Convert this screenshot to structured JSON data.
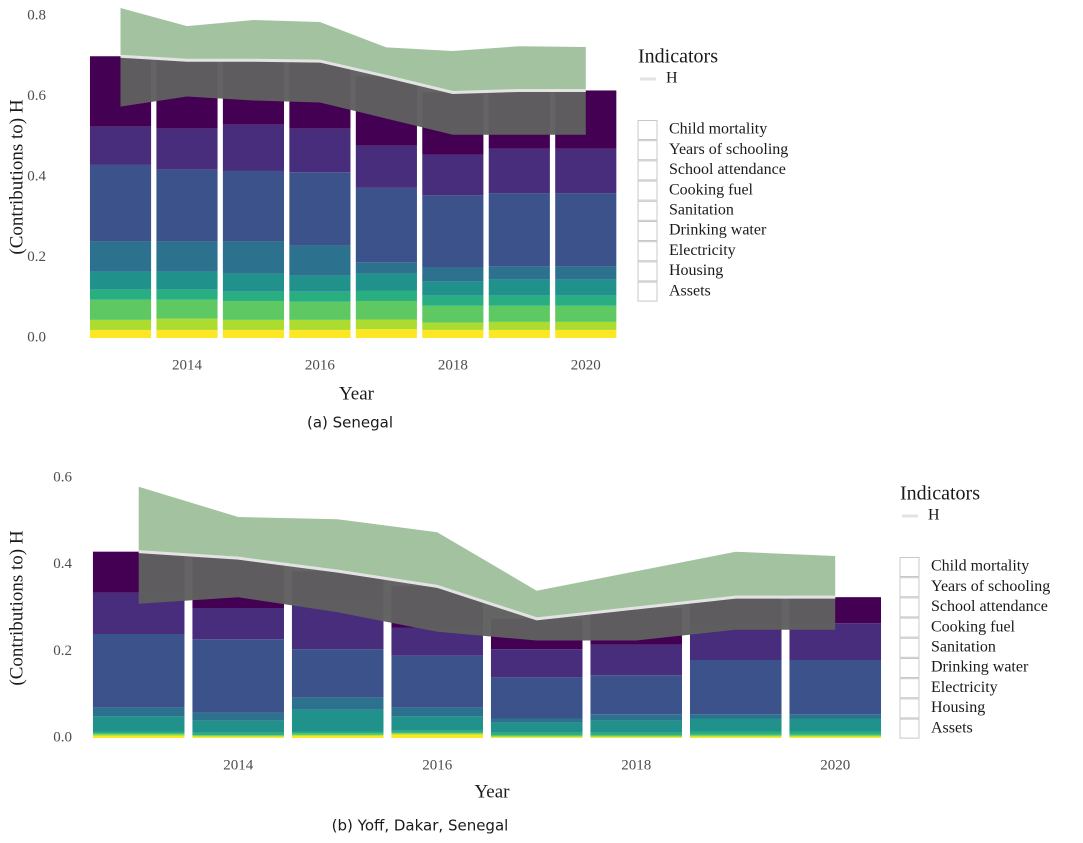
{
  "chart_data": [
    {
      "type": "bar",
      "stacked": true,
      "caption": "(a) Senegal",
      "x_label": "Year",
      "y_label": "(Contributions to) H",
      "legend_title": "Indicators",
      "x": [
        2013,
        2014,
        2015,
        2016,
        2017,
        2018,
        2019,
        2020
      ],
      "xlim": [
        2012.3,
        2020.5
      ],
      "xticks": [
        2014,
        2016,
        2018,
        2020
      ],
      "ylim": [
        0,
        0.8
      ],
      "yticks": [
        {
          "value": 0,
          "label": "0.0"
        },
        0.2,
        0.4,
        0.6,
        0.8
      ],
      "series": [
        {
          "name": "Child mortality",
          "color": "#440154",
          "values": [
            0.175,
            0.17,
            0.16,
            0.17,
            0.172,
            0.155,
            0.145,
            0.145
          ]
        },
        {
          "name": "Years of schooling",
          "color": "#472d7b",
          "values": [
            0.095,
            0.102,
            0.115,
            0.108,
            0.105,
            0.1,
            0.11,
            0.11
          ]
        },
        {
          "name": "School attendance",
          "color": "#3b528b",
          "values": [
            0.19,
            0.178,
            0.175,
            0.182,
            0.185,
            0.18,
            0.182,
            0.182
          ]
        },
        {
          "name": "Cooking fuel",
          "color": "#2c728e",
          "values": [
            0.075,
            0.075,
            0.08,
            0.075,
            0.028,
            0.035,
            0.033,
            0.033
          ]
        },
        {
          "name": "Sanitation",
          "color": "#21918c",
          "values": [
            0.045,
            0.045,
            0.045,
            0.04,
            0.042,
            0.035,
            0.04,
            0.04
          ]
        },
        {
          "name": "Drinking water",
          "color": "#28ae80",
          "values": [
            0.025,
            0.025,
            0.023,
            0.025,
            0.026,
            0.025,
            0.025,
            0.025
          ]
        },
        {
          "name": "Electricity",
          "color": "#5ec962",
          "values": [
            0.05,
            0.047,
            0.047,
            0.045,
            0.046,
            0.042,
            0.04,
            0.04
          ]
        },
        {
          "name": "Housing",
          "color": "#addc30",
          "values": [
            0.025,
            0.028,
            0.025,
            0.025,
            0.024,
            0.018,
            0.02,
            0.02
          ]
        },
        {
          "name": "Assets",
          "color": "#fde725",
          "values": [
            0.02,
            0.02,
            0.02,
            0.02,
            0.022,
            0.02,
            0.02,
            0.02
          ]
        }
      ],
      "h": {
        "name": "H",
        "color": "#e3e3e3",
        "values": [
          0.7,
          0.69,
          0.69,
          0.688,
          0.65,
          0.61,
          0.615,
          0.615
        ],
        "upper": [
          0.82,
          0.775,
          0.79,
          0.785,
          0.722,
          0.713,
          0.725,
          0.723
        ],
        "lower": [
          0.575,
          0.6,
          0.59,
          0.585,
          0.545,
          0.505,
          0.505,
          0.505
        ],
        "upper_color": "#a3c3a0",
        "lower_color": "#5f5f5f"
      }
    },
    {
      "type": "bar",
      "stacked": true,
      "caption": "(b) Yoff, Dakar, Senegal",
      "x_label": "Year",
      "y_label": "(Contributions to) H",
      "legend_title": "Indicators",
      "x": [
        2013,
        2014,
        2015,
        2016,
        2017,
        2018,
        2019,
        2020
      ],
      "xlim": [
        2012.4,
        2020.5
      ],
      "xticks": [
        2014,
        2016,
        2018,
        2020
      ],
      "ylim": [
        0,
        0.6
      ],
      "yticks": [
        {
          "value": 0,
          "label": "0.0"
        },
        0.2,
        0.4,
        0.6
      ],
      "series": [
        {
          "name": "Child mortality",
          "color": "#440154",
          "values": [
            0.095,
            0.115,
            0.07,
            0.095,
            0.07,
            0.085,
            0.065,
            0.06
          ]
        },
        {
          "name": "Years of schooling",
          "color": "#472d7b",
          "values": [
            0.095,
            0.072,
            0.11,
            0.065,
            0.065,
            0.07,
            0.08,
            0.085
          ]
        },
        {
          "name": "School attendance",
          "color": "#3b528b",
          "values": [
            0.17,
            0.17,
            0.112,
            0.12,
            0.095,
            0.09,
            0.125,
            0.125
          ]
        },
        {
          "name": "Cooking fuel",
          "color": "#2c728e",
          "values": [
            0.02,
            0.018,
            0.028,
            0.02,
            0.01,
            0.015,
            0.01,
            0.01
          ]
        },
        {
          "name": "Sanitation",
          "color": "#21918c",
          "values": [
            0.035,
            0.028,
            0.05,
            0.033,
            0.023,
            0.028,
            0.03,
            0.03
          ]
        },
        {
          "name": "Drinking water",
          "color": "#28ae80",
          "values": [
            0.005,
            0.005,
            0.005,
            0.005,
            0.005,
            0.005,
            0.007,
            0.007
          ]
        },
        {
          "name": "Electricity",
          "color": "#5ec962",
          "values": [
            0.002,
            0.002,
            0.003,
            0.002,
            0.003,
            0.003,
            0.003,
            0.003
          ]
        },
        {
          "name": "Housing",
          "color": "#addc30",
          "values": [
            0.003,
            0.002,
            0.002,
            0.002,
            0.002,
            0.002,
            0.002,
            0.002
          ]
        },
        {
          "name": "Assets",
          "color": "#fde725",
          "values": [
            0.005,
            0.003,
            0.005,
            0.008,
            0.002,
            0.002,
            0.003,
            0.003
          ]
        }
      ],
      "h": {
        "name": "H",
        "color": "#e3e3e3",
        "values": [
          0.43,
          0.415,
          0.385,
          0.35,
          0.275,
          0.3,
          0.325,
          0.325
        ],
        "upper": [
          0.58,
          0.51,
          0.505,
          0.475,
          0.34,
          0.385,
          0.43,
          0.42
        ],
        "lower": [
          0.31,
          0.325,
          0.29,
          0.245,
          0.225,
          0.225,
          0.25,
          0.25
        ],
        "upper_color": "#a3c3a0",
        "lower_color": "#5f5f5f"
      }
    }
  ]
}
